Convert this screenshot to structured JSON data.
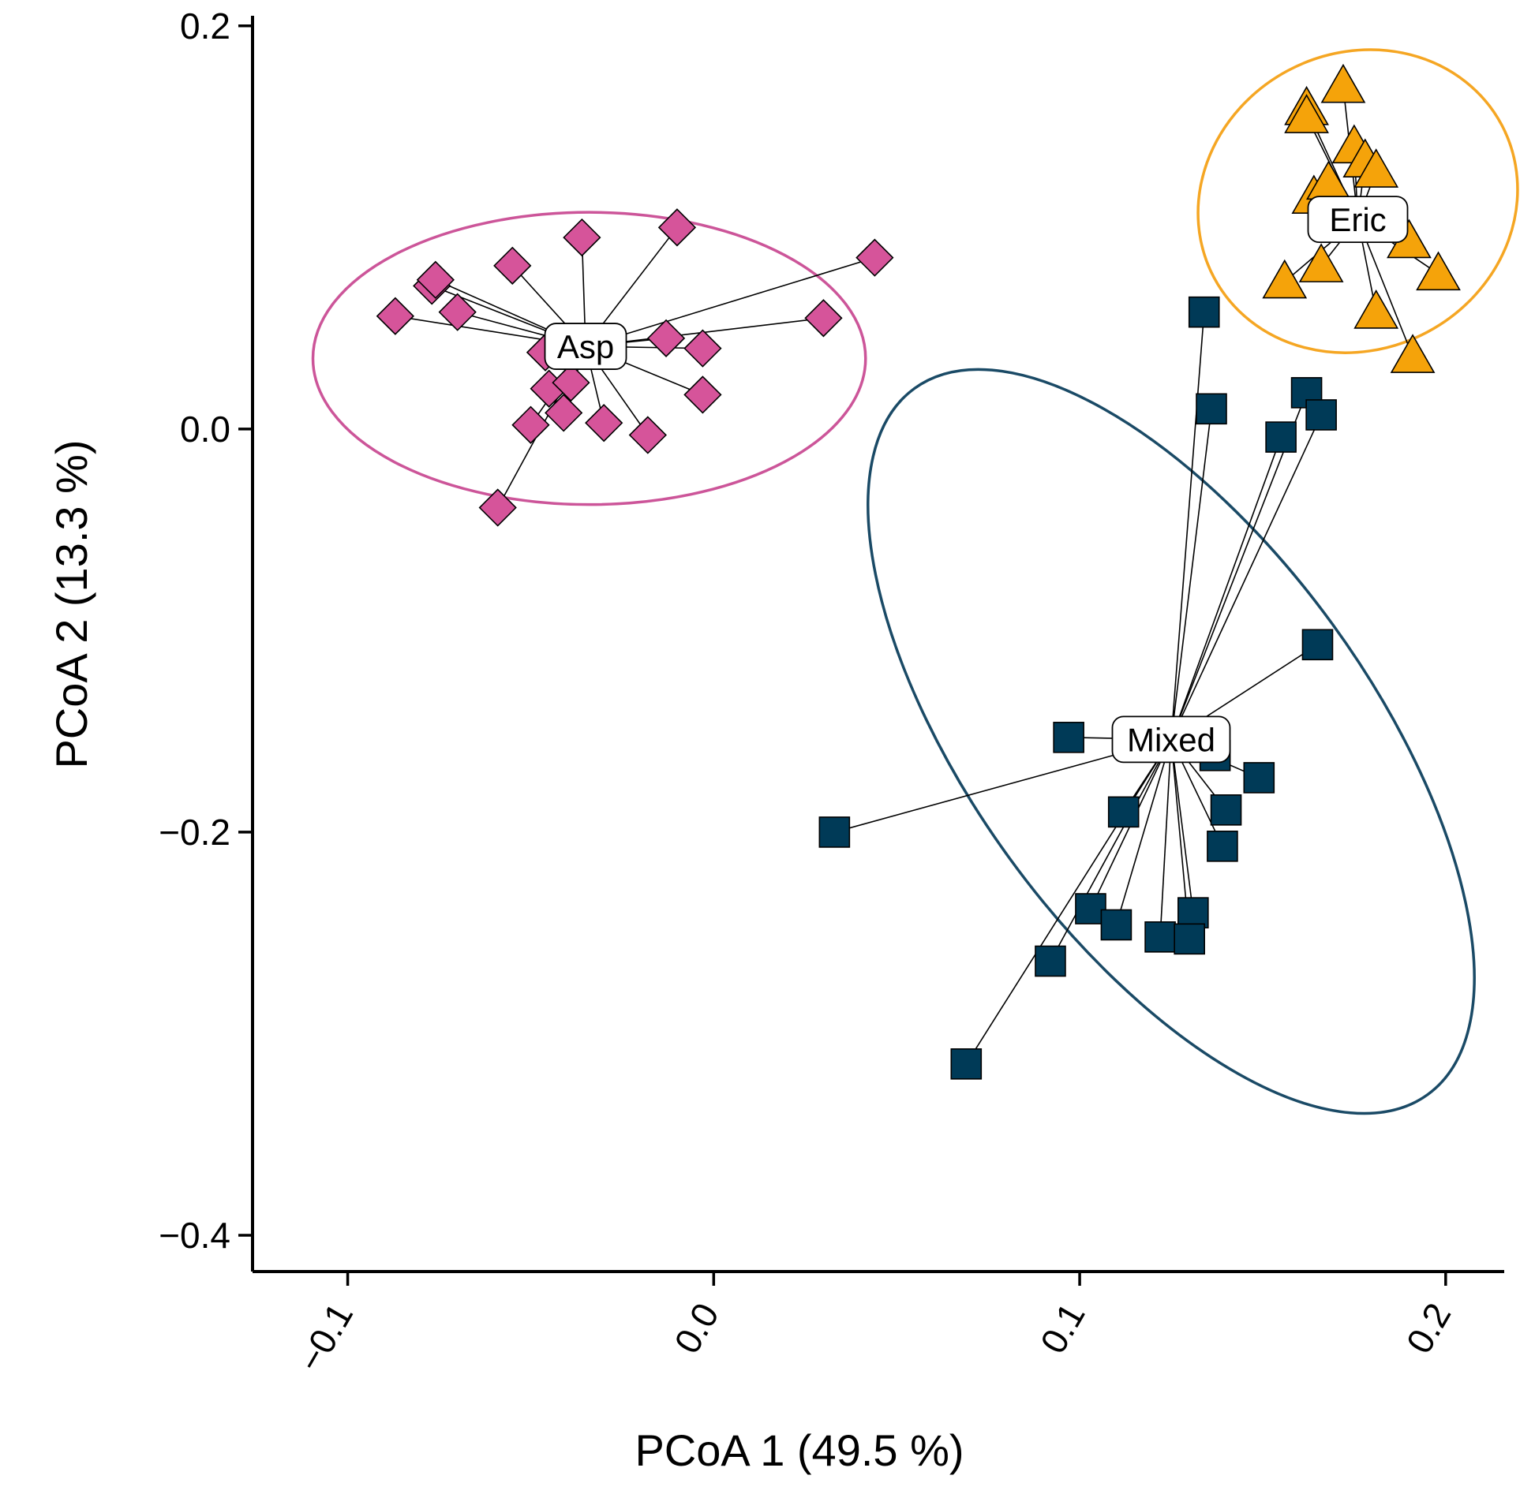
{
  "chart_data": {
    "type": "scatter",
    "title": "",
    "xlabel": "PCoA 1 (49.5 %)",
    "ylabel": "PCoA 2 (13.3 %)",
    "xlim": [
      -0.126,
      0.216
    ],
    "ylim": [
      -0.418,
      0.205
    ],
    "x_ticks": [
      -0.1,
      0.0,
      0.1,
      0.2
    ],
    "x_tick_labels": [
      "-0.1",
      "0.0",
      "0.1",
      "0.2"
    ],
    "y_ticks": [
      -0.4,
      -0.2,
      0.0,
      0.2
    ],
    "y_tick_labels": [
      "-0.4",
      "-0.2",
      "0.0",
      "0.2"
    ],
    "grid": false,
    "legend": "none",
    "series": [
      {
        "name": "Asp",
        "marker": "diamond",
        "color": "#D6549A",
        "ellipse_color": "#CC5599",
        "centroid": [
          -0.035,
          0.041
        ],
        "ellipse": {
          "center": [
            -0.034,
            0.035
          ],
          "semi_x": 0.0755,
          "semi_y": 0.0725,
          "angle_deg": 0
        },
        "points": [
          [
            -0.087,
            0.056
          ],
          [
            -0.077,
            0.071
          ],
          [
            -0.076,
            0.074
          ],
          [
            -0.07,
            0.058
          ],
          [
            -0.055,
            0.081
          ],
          [
            -0.046,
            0.038
          ],
          [
            -0.045,
            0.02
          ],
          [
            -0.041,
            0.008
          ],
          [
            -0.039,
            0.023
          ],
          [
            -0.036,
            0.095
          ],
          [
            -0.05,
            0.002
          ],
          [
            -0.03,
            0.003
          ],
          [
            -0.018,
            -0.003
          ],
          [
            -0.013,
            0.045
          ],
          [
            -0.01,
            0.1
          ],
          [
            -0.003,
            0.04
          ],
          [
            -0.003,
            0.017
          ],
          [
            -0.059,
            -0.039
          ],
          [
            0.03,
            0.055
          ],
          [
            0.044,
            0.085
          ]
        ]
      },
      {
        "name": "Eric",
        "marker": "triangle",
        "color": "#F5A30A",
        "ellipse_color": "#F5A623",
        "centroid": [
          0.176,
          0.104
        ],
        "ellipse": {
          "center": [
            0.176,
            0.113
          ],
          "semi_x": 0.0445,
          "semi_y": 0.0735,
          "angle_deg": -28
        },
        "points": [
          [
            0.172,
            0.17
          ],
          [
            0.162,
            0.159
          ],
          [
            0.162,
            0.155
          ],
          [
            0.175,
            0.14
          ],
          [
            0.178,
            0.133
          ],
          [
            0.181,
            0.128
          ],
          [
            0.164,
            0.115
          ],
          [
            0.168,
            0.122
          ],
          [
            0.174,
            0.103
          ],
          [
            0.179,
            0.101
          ],
          [
            0.19,
            0.093
          ],
          [
            0.198,
            0.077
          ],
          [
            0.156,
            0.073
          ],
          [
            0.166,
            0.081
          ],
          [
            0.181,
            0.058
          ],
          [
            0.191,
            0.036
          ]
        ]
      },
      {
        "name": "Mixed",
        "marker": "square",
        "color": "#003A57",
        "ellipse_color": "#1A4A66",
        "centroid": [
          0.125,
          -0.154
        ],
        "ellipse": {
          "center": [
            0.125,
            -0.155
          ],
          "semi_x": 0.0545,
          "semi_y": 0.2165,
          "angle_deg": -36
        },
        "points": [
          [
            0.134,
            0.058
          ],
          [
            0.136,
            0.01
          ],
          [
            0.155,
            -0.004
          ],
          [
            0.162,
            0.018
          ],
          [
            0.166,
            0.007
          ],
          [
            0.165,
            -0.107
          ],
          [
            0.097,
            -0.153
          ],
          [
            0.033,
            -0.2
          ],
          [
            0.137,
            -0.162
          ],
          [
            0.149,
            -0.173
          ],
          [
            0.112,
            -0.19
          ],
          [
            0.14,
            -0.189
          ],
          [
            0.139,
            -0.207
          ],
          [
            0.103,
            -0.238
          ],
          [
            0.11,
            -0.246
          ],
          [
            0.092,
            -0.264
          ],
          [
            0.122,
            -0.252
          ],
          [
            0.131,
            -0.24
          ],
          [
            0.13,
            -0.253
          ],
          [
            0.069,
            -0.315
          ]
        ]
      }
    ]
  }
}
